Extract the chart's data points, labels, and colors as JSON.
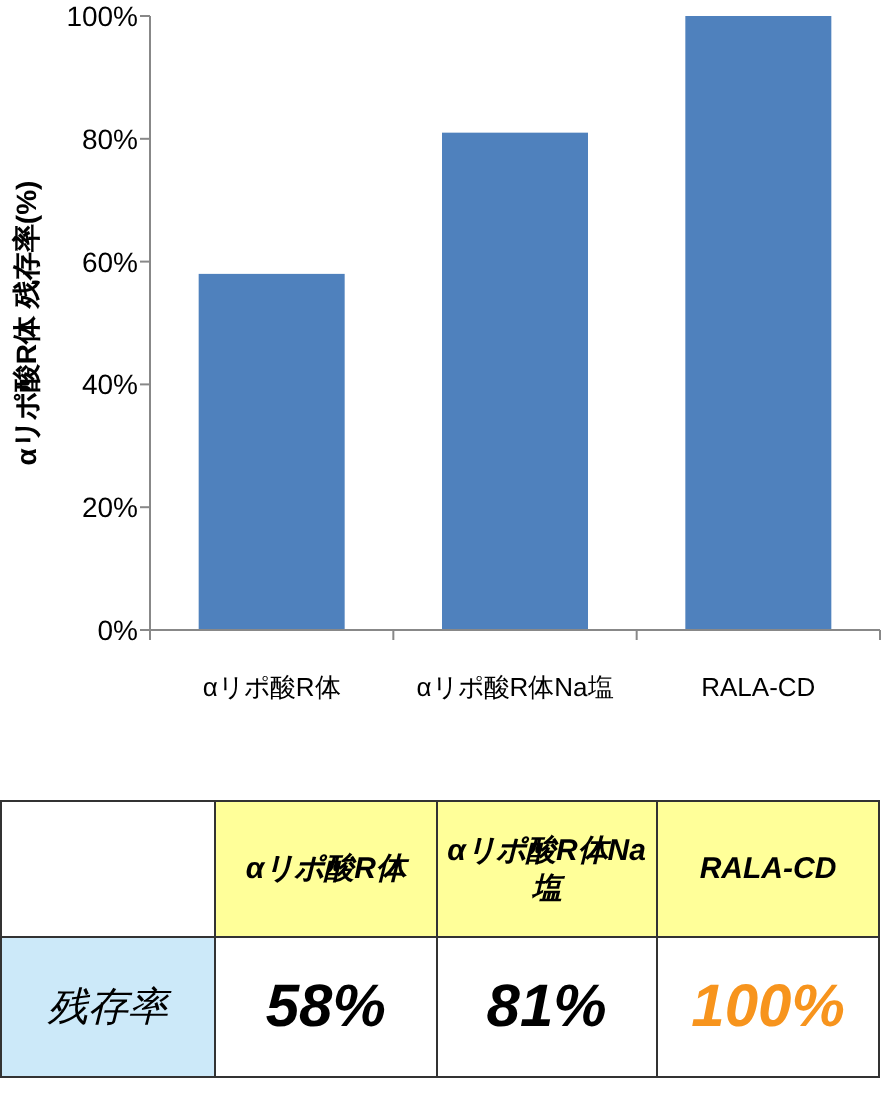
{
  "chart_data": {
    "type": "bar",
    "ylabel": "αリポ酸R体 残存率(%)",
    "categories": [
      "αリポ酸R体",
      "αリポ酸R体Na塩",
      "RALA-CD"
    ],
    "values": [
      58,
      81,
      100
    ],
    "color": "#4f81bd",
    "ylim": [
      0,
      100
    ],
    "yticks": [
      {
        "value": 0,
        "label": "0%"
      },
      {
        "value": 20,
        "label": "20%"
      },
      {
        "value": 40,
        "label": "40%"
      },
      {
        "value": 60,
        "label": "60%"
      },
      {
        "value": 80,
        "label": "80%"
      },
      {
        "value": 100,
        "label": "100%"
      }
    ],
    "value_labels": [
      "58%",
      "81%",
      "100%"
    ],
    "annotations": [
      "残存率"
    ]
  }
}
